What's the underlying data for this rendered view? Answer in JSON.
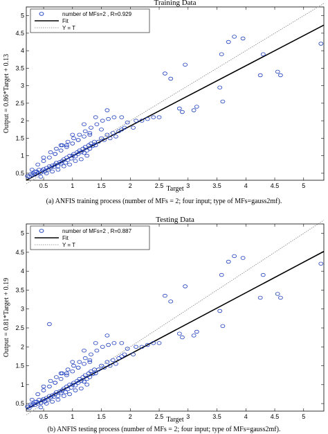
{
  "figure": {
    "panels": [
      {
        "caption": "(a)  ANFIS training process (number of MFs = 2; four input; type of MFs=gauss2mf).",
        "legend": [
          "number of MFs=2 , R=0.929",
          "Fit",
          "Y = T"
        ]
      },
      {
        "caption": "(b)  ANFIS testing process (number of MFs = 2; four input; type of MFs=gauss2mf).",
        "legend": [
          "number of MFs=2 , R=0.887",
          "Fit",
          "Y = T"
        ]
      }
    ]
  },
  "colors": {
    "points": "#1f3fbf",
    "fit": "#000000",
    "identity": "#808080",
    "axis": "#000000"
  },
  "chart_data": [
    {
      "type": "scatter",
      "title": "Training Data",
      "xlabel": "Target",
      "ylabel": "Output  = 0.86*Target + 0.13",
      "xlim": [
        0.2,
        5.35
      ],
      "ylim": [
        0.3,
        5.25
      ],
      "xticks": [
        0.5,
        1,
        1.5,
        2,
        2.5,
        3,
        3.5,
        4,
        4.5,
        5
      ],
      "yticks": [
        0.5,
        1,
        1.5,
        2,
        2.5,
        3,
        3.5,
        4,
        4.5,
        5
      ],
      "grid": false,
      "legend_position": "top-left",
      "fit": {
        "slope": 0.86,
        "intercept": 0.13
      },
      "identity_line": true,
      "points_sampled": {
        "x": [
          0.22,
          0.25,
          0.28,
          0.3,
          0.32,
          0.35,
          0.38,
          0.4,
          0.42,
          0.45,
          0.48,
          0.5,
          0.52,
          0.55,
          0.58,
          0.6,
          0.62,
          0.65,
          0.68,
          0.7,
          0.72,
          0.75,
          0.78,
          0.8,
          0.82,
          0.85,
          0.88,
          0.9,
          0.92,
          0.95,
          0.98,
          1.0,
          1.02,
          1.05,
          1.08,
          1.1,
          1.12,
          1.15,
          1.18,
          1.2,
          1.22,
          1.25,
          1.28,
          1.3,
          1.32,
          1.35,
          1.38,
          1.4,
          1.45,
          1.5,
          1.55,
          1.6,
          1.65,
          1.7,
          1.75,
          1.8,
          1.85,
          1.9,
          0.3,
          0.4,
          0.5,
          0.6,
          0.7,
          0.8,
          0.9,
          1.0,
          1.1,
          1.2,
          1.3,
          0.45,
          0.55,
          0.65,
          0.75,
          0.85,
          0.95,
          1.05,
          1.15,
          1.25,
          0.35,
          0.5,
          0.62,
          0.72,
          0.82,
          0.92,
          1.02,
          1.12,
          1.22,
          1.32,
          1.42,
          1.52,
          1.62,
          1.72,
          1.85,
          1.95,
          2.1,
          2.3,
          2.5,
          2.85,
          2.9,
          3.15,
          3.55,
          3.6,
          3.8,
          3.95,
          4.25,
          4.3,
          4.55,
          4.6,
          5.3,
          2.05,
          2.2,
          2.4,
          2.6,
          2.7,
          2.95,
          3.1,
          3.58,
          3.7,
          1.4,
          1.6,
          1.2,
          1.0,
          0.8,
          0.7,
          0.9,
          1.1,
          1.3,
          1.5
        ],
        "y": [
          0.42,
          0.4,
          0.48,
          0.45,
          0.5,
          0.46,
          0.55,
          0.5,
          0.6,
          0.52,
          0.58,
          0.62,
          0.55,
          0.65,
          0.6,
          0.7,
          0.66,
          0.72,
          0.68,
          0.75,
          0.8,
          0.7,
          0.82,
          0.78,
          0.85,
          0.9,
          0.8,
          0.95,
          0.88,
          1.0,
          0.92,
          1.0,
          1.05,
          0.98,
          1.1,
          1.05,
          1.15,
          1.1,
          1.2,
          1.08,
          1.25,
          1.15,
          1.3,
          1.2,
          1.35,
          1.28,
          1.4,
          1.3,
          1.4,
          1.5,
          1.45,
          1.6,
          1.5,
          1.65,
          1.55,
          1.7,
          1.75,
          1.8,
          0.6,
          0.75,
          0.85,
          0.95,
          1.05,
          1.15,
          1.25,
          1.35,
          1.45,
          1.55,
          1.65,
          0.4,
          0.5,
          0.55,
          0.6,
          0.7,
          0.75,
          0.85,
          0.9,
          1.0,
          0.55,
          0.95,
          1.1,
          1.2,
          1.3,
          1.4,
          1.5,
          1.6,
          1.7,
          1.8,
          1.9,
          2.0,
          2.05,
          2.1,
          2.1,
          1.95,
          2.0,
          2.05,
          2.1,
          2.35,
          2.25,
          2.4,
          2.95,
          2.55,
          4.4,
          4.35,
          3.3,
          3.9,
          3.4,
          3.3,
          4.2,
          1.8,
          2.0,
          2.1,
          3.35,
          3.2,
          3.6,
          2.3,
          3.9,
          4.25,
          2.1,
          2.3,
          1.9,
          1.6,
          1.3,
          1.05,
          1.3,
          1.45,
          1.6,
          1.75
        ]
      }
    },
    {
      "type": "scatter",
      "title": "Testing Data",
      "xlabel": "Target",
      "ylabel": "Output  = 0.81*Target + 0.19",
      "xlim": [
        0.2,
        5.35
      ],
      "ylim": [
        0.3,
        5.25
      ],
      "xticks": [
        0.5,
        1,
        1.5,
        2,
        2.5,
        3,
        3.5,
        4,
        4.5,
        5
      ],
      "yticks": [
        0.5,
        1,
        1.5,
        2,
        2.5,
        3,
        3.5,
        4,
        4.5,
        5
      ],
      "grid": false,
      "legend_position": "top-left",
      "fit": {
        "slope": 0.81,
        "intercept": 0.19
      },
      "identity_line": true,
      "points_sampled": {
        "x": [
          0.22,
          0.25,
          0.28,
          0.3,
          0.32,
          0.35,
          0.38,
          0.4,
          0.42,
          0.45,
          0.48,
          0.5,
          0.52,
          0.55,
          0.58,
          0.6,
          0.62,
          0.65,
          0.68,
          0.7,
          0.72,
          0.75,
          0.78,
          0.8,
          0.82,
          0.85,
          0.88,
          0.9,
          0.92,
          0.95,
          0.98,
          1.0,
          1.02,
          1.05,
          1.08,
          1.1,
          1.12,
          1.15,
          1.18,
          1.2,
          1.22,
          1.25,
          1.28,
          1.3,
          1.32,
          1.35,
          1.38,
          1.4,
          1.45,
          1.5,
          1.55,
          1.6,
          1.65,
          1.7,
          1.75,
          1.8,
          1.85,
          1.9,
          0.3,
          0.4,
          0.5,
          0.6,
          0.7,
          0.8,
          0.9,
          1.0,
          1.1,
          1.2,
          1.3,
          0.45,
          0.55,
          0.65,
          0.75,
          0.85,
          0.95,
          1.05,
          1.15,
          1.25,
          0.35,
          0.5,
          0.62,
          0.72,
          0.82,
          0.92,
          1.02,
          1.12,
          1.22,
          1.32,
          1.42,
          1.52,
          1.62,
          1.72,
          1.85,
          1.95,
          2.1,
          2.3,
          2.5,
          2.85,
          2.9,
          3.15,
          3.55,
          3.6,
          3.8,
          3.95,
          4.25,
          4.3,
          4.55,
          4.6,
          5.3,
          2.05,
          2.2,
          2.4,
          2.6,
          2.7,
          2.95,
          3.1,
          3.58,
          3.7,
          0.6,
          1.4,
          1.6,
          1.2,
          1.0,
          0.8,
          0.7,
          0.9,
          1.1,
          1.3
        ],
        "y": [
          0.42,
          0.38,
          0.48,
          0.45,
          0.5,
          0.46,
          0.55,
          0.5,
          0.6,
          0.52,
          0.58,
          0.62,
          0.55,
          0.65,
          0.6,
          0.7,
          0.66,
          0.72,
          0.68,
          0.75,
          0.8,
          0.7,
          0.82,
          0.78,
          0.85,
          0.9,
          0.8,
          0.95,
          0.88,
          1.0,
          0.92,
          1.0,
          1.05,
          0.98,
          1.1,
          1.05,
          1.15,
          1.1,
          1.2,
          1.08,
          1.25,
          1.15,
          1.3,
          1.2,
          1.35,
          1.28,
          1.4,
          1.3,
          1.4,
          1.5,
          1.45,
          1.6,
          1.5,
          1.65,
          1.55,
          1.7,
          1.75,
          1.8,
          0.6,
          0.75,
          0.85,
          0.95,
          1.05,
          1.15,
          1.25,
          1.35,
          1.45,
          1.55,
          1.65,
          0.4,
          0.5,
          0.55,
          0.6,
          0.7,
          0.75,
          0.85,
          0.9,
          1.0,
          0.55,
          0.95,
          1.1,
          1.2,
          1.3,
          1.4,
          1.5,
          1.6,
          1.7,
          1.8,
          1.9,
          2.0,
          2.05,
          2.1,
          2.1,
          1.95,
          2.0,
          2.05,
          2.1,
          2.35,
          2.25,
          2.4,
          2.95,
          2.55,
          4.4,
          4.35,
          3.3,
          3.9,
          3.4,
          3.3,
          4.2,
          1.8,
          2.0,
          2.1,
          3.35,
          3.2,
          3.6,
          2.3,
          3.9,
          4.25,
          2.6,
          2.1,
          2.3,
          1.9,
          1.6,
          1.3,
          1.05,
          1.3,
          1.45,
          1.6
        ]
      }
    }
  ]
}
